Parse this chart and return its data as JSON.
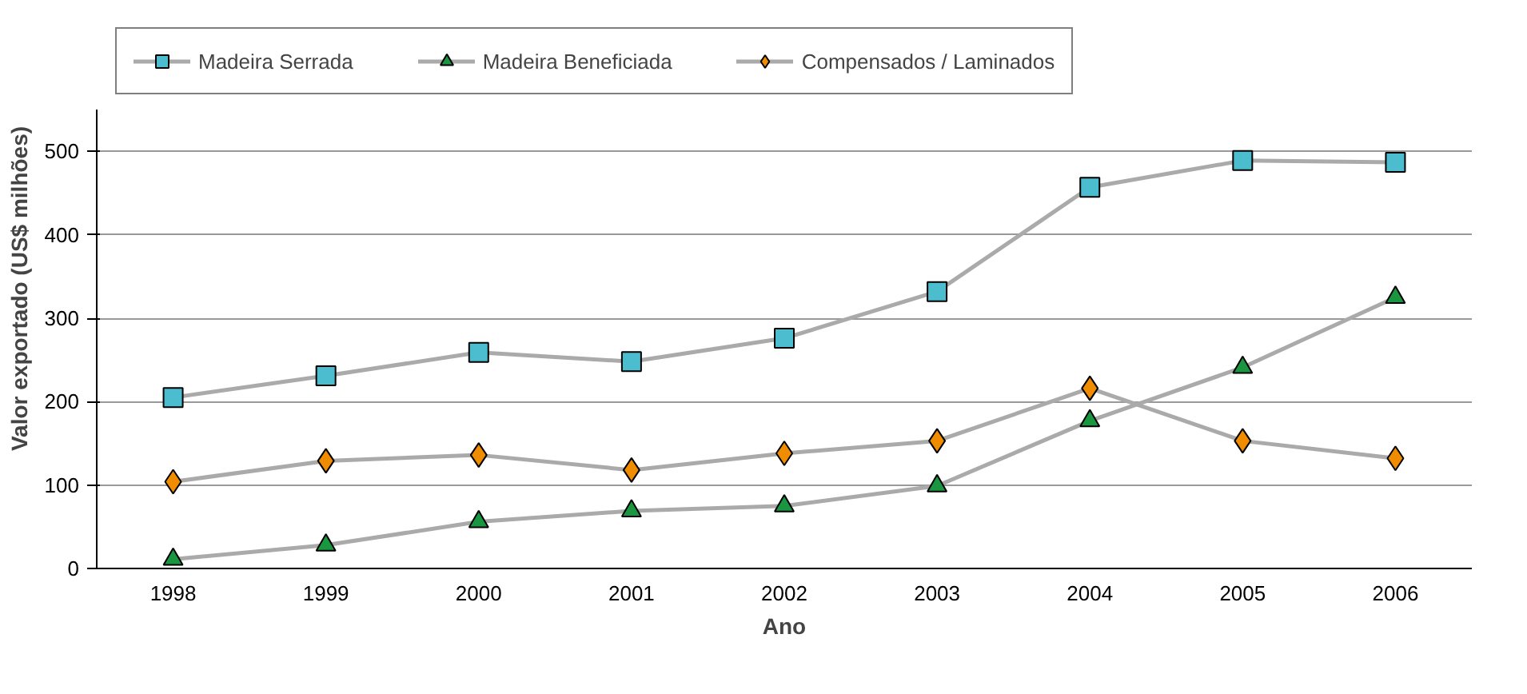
{
  "chart_data": {
    "type": "line",
    "xlabel": "Ano",
    "ylabel": "Valor exportado (US$ milhões)",
    "categories": [
      "1998",
      "1999",
      "2000",
      "2001",
      "2002",
      "2003",
      "2004",
      "2005",
      "2006"
    ],
    "ylim": [
      0,
      550
    ],
    "yticks": [
      0,
      100,
      200,
      300,
      400,
      500
    ],
    "grid": "y",
    "legend": "top",
    "series": [
      {
        "name": "Madeira Serrada",
        "color": "#4bbdcf",
        "marker": "square",
        "values": [
          205,
          231,
          259,
          248,
          276,
          332,
          457,
          489,
          487
        ]
      },
      {
        "name": "Madeira Beneficiada",
        "color": "#1a9641",
        "marker": "triangle",
        "values": [
          11,
          28,
          56,
          69,
          75,
          99,
          177,
          241,
          325
        ]
      },
      {
        "name": "Compensados / Laminados",
        "color": "#f08c00",
        "marker": "diamond",
        "values": [
          104,
          129,
          136,
          118,
          138,
          153,
          216,
          153,
          132
        ]
      }
    ]
  }
}
